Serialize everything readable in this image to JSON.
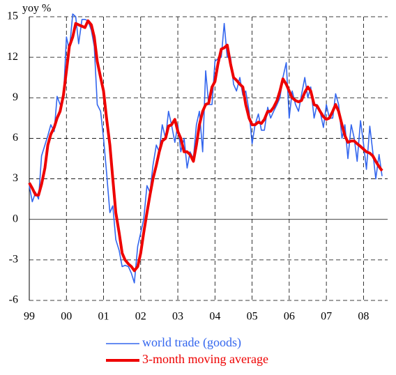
{
  "chart_data": {
    "type": "line",
    "y_label": "yoy %",
    "x": [
      1999,
      1999.08,
      1999.17,
      1999.25,
      1999.33,
      1999.42,
      1999.5,
      1999.58,
      1999.67,
      1999.75,
      1999.83,
      1999.92,
      2000,
      2000.08,
      2000.17,
      2000.25,
      2000.33,
      2000.42,
      2000.5,
      2000.58,
      2000.67,
      2000.75,
      2000.83,
      2000.92,
      2001,
      2001.08,
      2001.17,
      2001.25,
      2001.33,
      2001.42,
      2001.5,
      2001.58,
      2001.67,
      2001.75,
      2001.83,
      2001.92,
      2002,
      2002.08,
      2002.17,
      2002.25,
      2002.33,
      2002.42,
      2002.5,
      2002.58,
      2002.67,
      2002.75,
      2002.83,
      2002.92,
      2003,
      2003.08,
      2003.17,
      2003.25,
      2003.33,
      2003.42,
      2003.5,
      2003.58,
      2003.67,
      2003.75,
      2003.83,
      2003.92,
      2004,
      2004.08,
      2004.17,
      2004.25,
      2004.33,
      2004.42,
      2004.5,
      2004.58,
      2004.67,
      2004.75,
      2004.83,
      2004.92,
      2005,
      2005.08,
      2005.17,
      2005.25,
      2005.33,
      2005.42,
      2005.5,
      2005.58,
      2005.67,
      2005.75,
      2005.83,
      2005.92,
      2006,
      2006.08,
      2006.17,
      2006.25,
      2006.33,
      2006.42,
      2006.5,
      2006.58,
      2006.67,
      2006.75,
      2006.83,
      2006.92,
      2007,
      2007.08,
      2007.17,
      2007.25,
      2007.33,
      2007.42,
      2007.5,
      2007.58,
      2007.67,
      2007.75,
      2007.83,
      2007.92,
      2008,
      2008.08,
      2008.17,
      2008.25,
      2008.33,
      2008.42,
      2008.5
    ],
    "series": [
      {
        "name": "world trade (goods)",
        "color": "#3366ee",
        "width": 1.6,
        "values": [
          2.5,
          1.3,
          2,
          1.5,
          4.7,
          5.5,
          6.2,
          7,
          6.5,
          9.1,
          8.5,
          9,
          13.5,
          12.5,
          15.2,
          15,
          13,
          14.8,
          14.8,
          14.7,
          14,
          12.8,
          8.5,
          8,
          6,
          3.5,
          0.5,
          1,
          -1.5,
          -2.3,
          -3.5,
          -3.4,
          -3.5,
          -4,
          -4.7,
          -2,
          -1,
          0,
          2.5,
          2,
          4,
          5.5,
          5,
          7,
          6,
          8,
          7,
          5.7,
          7,
          5,
          6,
          3.8,
          5,
          4.5,
          7,
          8,
          5,
          11,
          8.5,
          8.5,
          11.7,
          11.9,
          12,
          14.5,
          12,
          12,
          10,
          9.5,
          10.5,
          9.2,
          9.5,
          8,
          5.6,
          7,
          7.8,
          6.6,
          6.6,
          8.3,
          7.5,
          8,
          8.5,
          9,
          10.5,
          11.6,
          7.5,
          9.5,
          8.5,
          8,
          9.2,
          10.5,
          9,
          9.8,
          7.5,
          8.5,
          8,
          6.8,
          8.5,
          7.5,
          7.5,
          9.3,
          8.5,
          6,
          7,
          4.5,
          7,
          6,
          4.3,
          7.3,
          5.6,
          3.7,
          6.9,
          5,
          3,
          4.8,
          3.2
        ]
      },
      {
        "name": "3-month moving average",
        "color": "#ee0000",
        "width": 4,
        "values": [
          2.7,
          2.3,
          1.8,
          1.8,
          2.6,
          3.8,
          5.5,
          6.3,
          6.8,
          7.5,
          8,
          9.2,
          11,
          12.8,
          13.5,
          14.5,
          14.4,
          14.3,
          14.2,
          14.7,
          14.4,
          13.5,
          11.7,
          10.5,
          9.5,
          7.5,
          5.5,
          3,
          0.5,
          -1,
          -2.5,
          -3,
          -3.3,
          -3.5,
          -3.8,
          -3.5,
          -2.5,
          -1,
          0.5,
          1.8,
          3,
          4,
          5,
          5.8,
          6,
          6.9,
          7,
          7.4,
          6.5,
          6,
          5,
          5,
          4.8,
          4.3,
          5.5,
          7,
          8,
          8.5,
          8.6,
          9.8,
          10.2,
          11.5,
          12.6,
          12.7,
          12.9,
          11.5,
          10.5,
          10.3,
          10,
          9.8,
          8.5,
          7.5,
          7,
          7,
          7.2,
          7.1,
          7.4,
          8,
          8,
          8.3,
          8.8,
          9.5,
          10.4,
          10,
          9.5,
          9,
          8.8,
          8.7,
          8.8,
          9.4,
          9.8,
          9.5,
          8.5,
          8.4,
          8,
          7.6,
          7.4,
          7.5,
          8,
          8.5,
          8,
          7,
          6.2,
          5.7,
          5.8,
          5.8,
          5.6,
          5.4,
          5.2,
          5,
          4.9,
          4.7,
          4.3,
          3.9,
          3.6
        ]
      }
    ],
    "xlim": [
      1999,
      2008.65
    ],
    "xticks": [
      {
        "value": 1999,
        "label": "99"
      },
      {
        "value": 2000,
        "label": "00"
      },
      {
        "value": 2001,
        "label": "01"
      },
      {
        "value": 2002,
        "label": "02"
      },
      {
        "value": 2003,
        "label": "03"
      },
      {
        "value": 2004,
        "label": "04"
      },
      {
        "value": 2005,
        "label": "05"
      },
      {
        "value": 2006,
        "label": "06"
      },
      {
        "value": 2007,
        "label": "07"
      },
      {
        "value": 2008,
        "label": "08"
      }
    ],
    "ylim": [
      -6,
      15
    ],
    "yticks": [
      -6,
      -3,
      0,
      3,
      6,
      9,
      12,
      15
    ],
    "grid": true
  }
}
